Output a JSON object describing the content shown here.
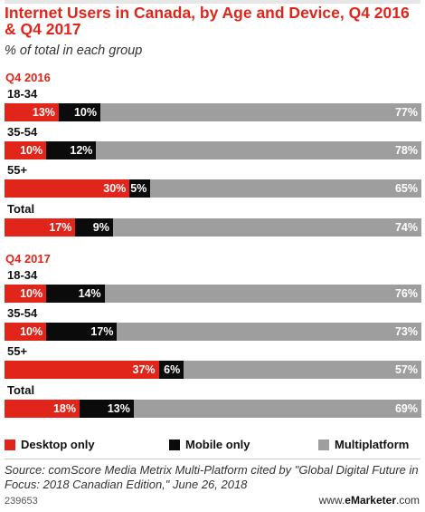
{
  "chart_data": {
    "type": "bar",
    "stacked": true,
    "orientation": "horizontal",
    "title": "Internet Users in Canada, by Age and Device, Q4 2016 & Q4 2017",
    "subtitle": "% of total in each group",
    "periods": [
      {
        "label": "Q4 2016",
        "groups": [
          {
            "label": "18-34",
            "values": [
              13,
              10,
              77
            ]
          },
          {
            "label": "35-54",
            "values": [
              10,
              12,
              78
            ]
          },
          {
            "label": "55+",
            "values": [
              30,
              5,
              65
            ]
          },
          {
            "label": "Total",
            "values": [
              17,
              9,
              74
            ]
          }
        ]
      },
      {
        "label": "Q4 2017",
        "groups": [
          {
            "label": "18-34",
            "values": [
              10,
              14,
              76
            ]
          },
          {
            "label": "35-54",
            "values": [
              10,
              17,
              73
            ]
          },
          {
            "label": "55+",
            "values": [
              37,
              6,
              57
            ]
          },
          {
            "label": "Total",
            "values": [
              18,
              13,
              69
            ]
          }
        ]
      }
    ],
    "series": [
      {
        "name": "Desktop only",
        "color": "#e1251b"
      },
      {
        "name": "Mobile only",
        "color": "#0b0b0b"
      },
      {
        "name": "Multiplatform",
        "color": "#9e9e9e"
      }
    ],
    "value_suffix": "%",
    "legend_position": "bottom"
  },
  "source": "Source: comScore Media Metrix Multi-Platform cited by \"Global Digital Future in Focus: 2018 Canadian Edition,\" June 26, 2018",
  "chart_id": "239653",
  "brand": {
    "prefix": "www.",
    "name": "eMarketer",
    "suffix": ".com"
  }
}
